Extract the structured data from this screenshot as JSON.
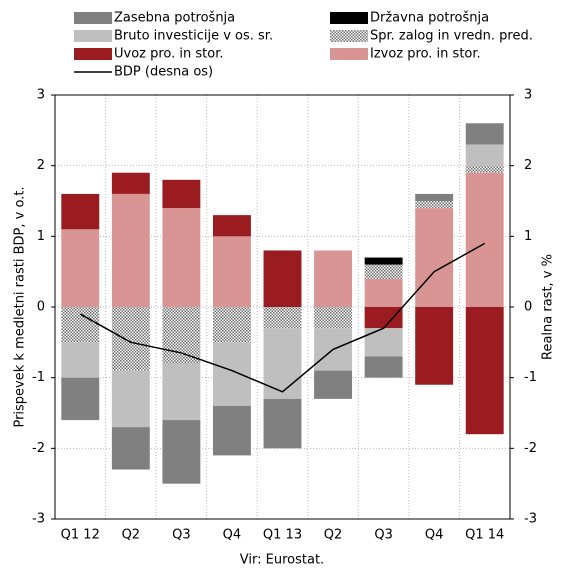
{
  "chart_data": {
    "type": "bar",
    "y_label": "Prispevek k medletni rasti BDP, v o.t.",
    "y2_label": "Realna rast, v %",
    "note": "Vir: Eurostat.",
    "categories": [
      "Q1 12",
      "Q2",
      "Q3",
      "Q4",
      "Q1 13",
      "Q2",
      "Q3",
      "Q4",
      "Q1 14"
    ],
    "series": [
      {
        "name": "Zasebna potrošnja",
        "color": "#808080",
        "values": [
          -0.6,
          -0.6,
          -0.9,
          -0.7,
          -0.7,
          -0.4,
          -0.3,
          0.1,
          0.3
        ]
      },
      {
        "name": "Državna potrošnja",
        "color": "#000000",
        "values": [
          0,
          0,
          0,
          0,
          0,
          0,
          0.1,
          0,
          0
        ]
      },
      {
        "name": "Bruto investicije v os. sr.",
        "color": "#bfbfbf",
        "values": [
          -0.5,
          -0.8,
          -0.8,
          -0.9,
          -1.0,
          -0.6,
          -0.4,
          0,
          0.3
        ]
      },
      {
        "name": "Spr. zalog in vredn. pred.",
        "color": "#6e6e6e",
        "pattern": "dots",
        "values": [
          -0.5,
          -0.9,
          -0.8,
          -0.5,
          -0.3,
          -0.3,
          0.2,
          0.1,
          0.1
        ]
      },
      {
        "name": "Uvoz pro. in stor.",
        "color": "#9b1c20",
        "values": [
          0.5,
          0.3,
          0.4,
          0.3,
          0.8,
          0,
          -0.3,
          -1.1,
          -1.8
        ]
      },
      {
        "name": "Izvoz pro. in stor.",
        "color": "#d99594",
        "values": [
          1.1,
          1.6,
          1.4,
          1.0,
          0,
          0.8,
          0.4,
          1.4,
          1.9
        ]
      },
      {
        "name": "BDP (desna os)",
        "color": "#000000",
        "type": "line",
        "axis": "y2",
        "values": [
          -0.1,
          -0.5,
          -0.65,
          -0.9,
          -1.2,
          -0.6,
          -0.3,
          0.5,
          0.9
        ]
      }
    ],
    "ylim": [
      -3,
      3
    ],
    "yticks": [
      -3,
      -2,
      -1,
      0,
      1,
      2,
      3
    ],
    "y2lim": [
      -3,
      3
    ],
    "y2ticks": [
      -3,
      -2,
      -1,
      0,
      1,
      2,
      3
    ],
    "grid": true
  }
}
